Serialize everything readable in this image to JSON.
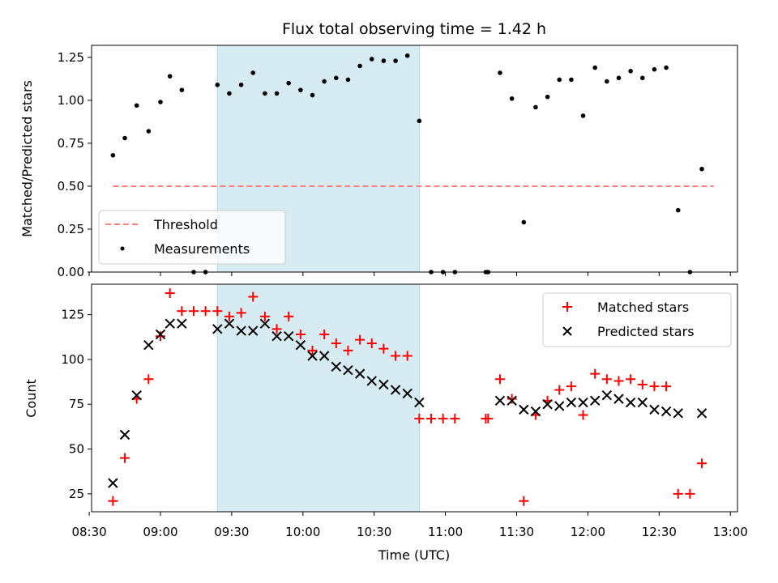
{
  "chart_data": [
    {
      "type": "scatter",
      "title": "Flux total observing time = 1.42 h",
      "ylabel": "Matched/Predicted stars",
      "ylim": [
        0,
        1.32
      ],
      "yticks": [
        0.0,
        0.25,
        0.5,
        0.75,
        1.0,
        1.25
      ],
      "ytick_labels": [
        "0.00",
        "0.25",
        "0.50",
        "0.75",
        "1.00",
        "1.25"
      ],
      "xlim": [
        "08:31",
        "13:03"
      ],
      "shaded_region": [
        "09:24",
        "10:49"
      ],
      "threshold": {
        "name": "Threshold",
        "value": 0.5,
        "x": [
          "08:40",
          "12:53"
        ],
        "color": "#ff7f7f"
      },
      "legend": "lower-left",
      "series": [
        {
          "name": "Measurements",
          "color": "#000000",
          "points": [
            [
              "08:40",
              0.68
            ],
            [
              "08:45",
              0.78
            ],
            [
              "08:50",
              0.97
            ],
            [
              "08:55",
              0.82
            ],
            [
              "09:00",
              0.99
            ],
            [
              "09:04",
              1.14
            ],
            [
              "09:09",
              1.06
            ],
            [
              "09:14",
              0.0
            ],
            [
              "09:19",
              0.0
            ],
            [
              "09:24",
              1.09
            ],
            [
              "09:29",
              1.04
            ],
            [
              "09:34",
              1.09
            ],
            [
              "09:39",
              1.16
            ],
            [
              "09:44",
              1.04
            ],
            [
              "09:49",
              1.04
            ],
            [
              "09:54",
              1.1
            ],
            [
              "09:59",
              1.06
            ],
            [
              "10:04",
              1.03
            ],
            [
              "10:09",
              1.11
            ],
            [
              "10:14",
              1.13
            ],
            [
              "10:19",
              1.12
            ],
            [
              "10:24",
              1.2
            ],
            [
              "10:29",
              1.24
            ],
            [
              "10:34",
              1.23
            ],
            [
              "10:39",
              1.23
            ],
            [
              "10:44",
              1.26
            ],
            [
              "10:49",
              0.88
            ],
            [
              "10:54",
              0.0
            ],
            [
              "10:59",
              0.0
            ],
            [
              "11:04",
              0.0
            ],
            [
              "11:17",
              0.0
            ],
            [
              "11:18",
              0.0
            ],
            [
              "11:23",
              1.16
            ],
            [
              "11:28",
              1.01
            ],
            [
              "11:33",
              0.29
            ],
            [
              "11:38",
              0.96
            ],
            [
              "11:43",
              1.02
            ],
            [
              "11:48",
              1.12
            ],
            [
              "11:53",
              1.12
            ],
            [
              "11:58",
              0.91
            ],
            [
              "12:03",
              1.19
            ],
            [
              "12:08",
              1.11
            ],
            [
              "12:13",
              1.13
            ],
            [
              "12:18",
              1.17
            ],
            [
              "12:23",
              1.13
            ],
            [
              "12:28",
              1.18
            ],
            [
              "12:33",
              1.19
            ],
            [
              "12:38",
              0.36
            ],
            [
              "12:43",
              0.0
            ],
            [
              "12:48",
              0.6
            ]
          ]
        }
      ]
    },
    {
      "type": "scatter",
      "title": "",
      "xlabel": "Time (UTC)",
      "ylabel": "Count",
      "ylim": [
        15,
        142
      ],
      "yticks": [
        25,
        50,
        75,
        100,
        125
      ],
      "ytick_labels": [
        "25",
        "50",
        "75",
        "100",
        "125"
      ],
      "xticks": [
        "08:30",
        "09:00",
        "09:30",
        "10:00",
        "10:30",
        "11:00",
        "11:30",
        "12:00",
        "12:30",
        "13:00"
      ],
      "xtick_labels": [
        "08:30",
        "09:00",
        "09:30",
        "10:00",
        "10:30",
        "11:00",
        "11:30",
        "12:00",
        "12:30",
        "13:00"
      ],
      "xlim": [
        "08:31",
        "13:03"
      ],
      "shaded_region": [
        "09:24",
        "10:49"
      ],
      "legend": "top-right",
      "series": [
        {
          "name": "Matched stars",
          "marker": "plus",
          "color": "#ff0000",
          "points": [
            [
              "08:40",
              21
            ],
            [
              "08:45",
              45
            ],
            [
              "08:50",
              78
            ],
            [
              "08:55",
              89
            ],
            [
              "09:00",
              113
            ],
            [
              "09:04",
              137
            ],
            [
              "09:09",
              127
            ],
            [
              "09:14",
              127
            ],
            [
              "09:19",
              127
            ],
            [
              "09:24",
              127
            ],
            [
              "09:29",
              124
            ],
            [
              "09:34",
              126
            ],
            [
              "09:39",
              135
            ],
            [
              "09:44",
              124
            ],
            [
              "09:49",
              117
            ],
            [
              "09:54",
              124
            ],
            [
              "09:59",
              114
            ],
            [
              "10:04",
              105
            ],
            [
              "10:09",
              114
            ],
            [
              "10:14",
              109
            ],
            [
              "10:19",
              105
            ],
            [
              "10:24",
              111
            ],
            [
              "10:29",
              109
            ],
            [
              "10:34",
              106
            ],
            [
              "10:39",
              102
            ],
            [
              "10:44",
              102
            ],
            [
              "10:49",
              67
            ],
            [
              "10:54",
              67
            ],
            [
              "10:59",
              67
            ],
            [
              "11:04",
              67
            ],
            [
              "11:17",
              67
            ],
            [
              "11:18",
              67
            ],
            [
              "11:23",
              89
            ],
            [
              "11:28",
              78
            ],
            [
              "11:33",
              21
            ],
            [
              "11:38",
              69
            ],
            [
              "11:43",
              77
            ],
            [
              "11:48",
              83
            ],
            [
              "11:53",
              85
            ],
            [
              "11:58",
              69
            ],
            [
              "12:03",
              92
            ],
            [
              "12:08",
              89
            ],
            [
              "12:13",
              88
            ],
            [
              "12:18",
              89
            ],
            [
              "12:23",
              86
            ],
            [
              "12:28",
              85
            ],
            [
              "12:33",
              85
            ],
            [
              "12:38",
              25
            ],
            [
              "12:43",
              25
            ],
            [
              "12:48",
              42
            ]
          ]
        },
        {
          "name": "Predicted stars",
          "marker": "x",
          "color": "#000000",
          "points": [
            [
              "08:40",
              31
            ],
            [
              "08:45",
              58
            ],
            [
              "08:50",
              80
            ],
            [
              "08:55",
              108
            ],
            [
              "09:00",
              114
            ],
            [
              "09:04",
              120
            ],
            [
              "09:09",
              120
            ],
            [
              "09:24",
              117
            ],
            [
              "09:29",
              120
            ],
            [
              "09:34",
              116
            ],
            [
              "09:39",
              116
            ],
            [
              "09:44",
              120
            ],
            [
              "09:49",
              113
            ],
            [
              "09:54",
              113
            ],
            [
              "09:59",
              108
            ],
            [
              "10:04",
              102
            ],
            [
              "10:09",
              102
            ],
            [
              "10:14",
              96
            ],
            [
              "10:19",
              94
            ],
            [
              "10:24",
              92
            ],
            [
              "10:29",
              88
            ],
            [
              "10:34",
              86
            ],
            [
              "10:39",
              83
            ],
            [
              "10:44",
              81
            ],
            [
              "10:49",
              76
            ],
            [
              "11:23",
              77
            ],
            [
              "11:28",
              77
            ],
            [
              "11:33",
              72
            ],
            [
              "11:38",
              71
            ],
            [
              "11:43",
              75
            ],
            [
              "11:48",
              74
            ],
            [
              "11:53",
              76
            ],
            [
              "11:58",
              76
            ],
            [
              "12:03",
              77
            ],
            [
              "12:08",
              80
            ],
            [
              "12:13",
              78
            ],
            [
              "12:18",
              76
            ],
            [
              "12:23",
              76
            ],
            [
              "12:28",
              72
            ],
            [
              "12:33",
              71
            ],
            [
              "12:38",
              70
            ],
            [
              "12:48",
              70
            ]
          ]
        }
      ]
    }
  ]
}
